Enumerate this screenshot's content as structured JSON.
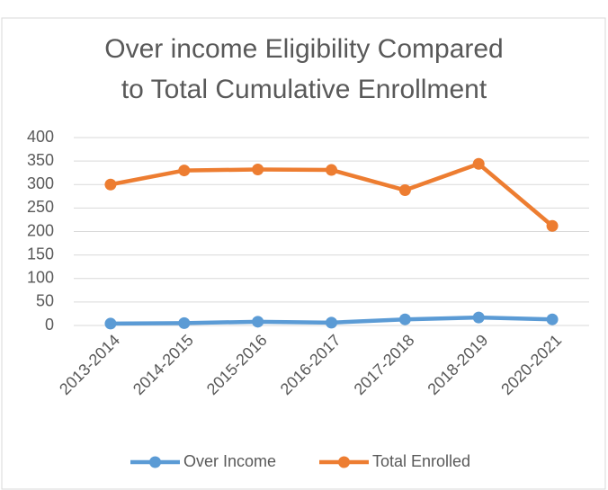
{
  "chart_data": {
    "type": "line",
    "title": [
      "Over income Eligibility Compared",
      "to Total Cumulative Enrollment"
    ],
    "categories": [
      "2013-2014",
      "2014-2015",
      "2015-2016",
      "2016-2017",
      "2017-2018",
      "2018-2019",
      "2020-2021"
    ],
    "series": [
      {
        "name": "Over Income",
        "color": "#5b9bd5",
        "values": [
          4,
          5,
          8,
          6,
          13,
          17,
          13
        ]
      },
      {
        "name": "Total Enrolled",
        "color": "#ed7d31",
        "values": [
          300,
          330,
          332,
          331,
          288,
          344,
          212
        ]
      }
    ],
    "ylim": [
      0,
      400
    ],
    "yticks": [
      0,
      50,
      100,
      150,
      200,
      250,
      300,
      350,
      400
    ],
    "grid": true,
    "legend": "bottom"
  }
}
